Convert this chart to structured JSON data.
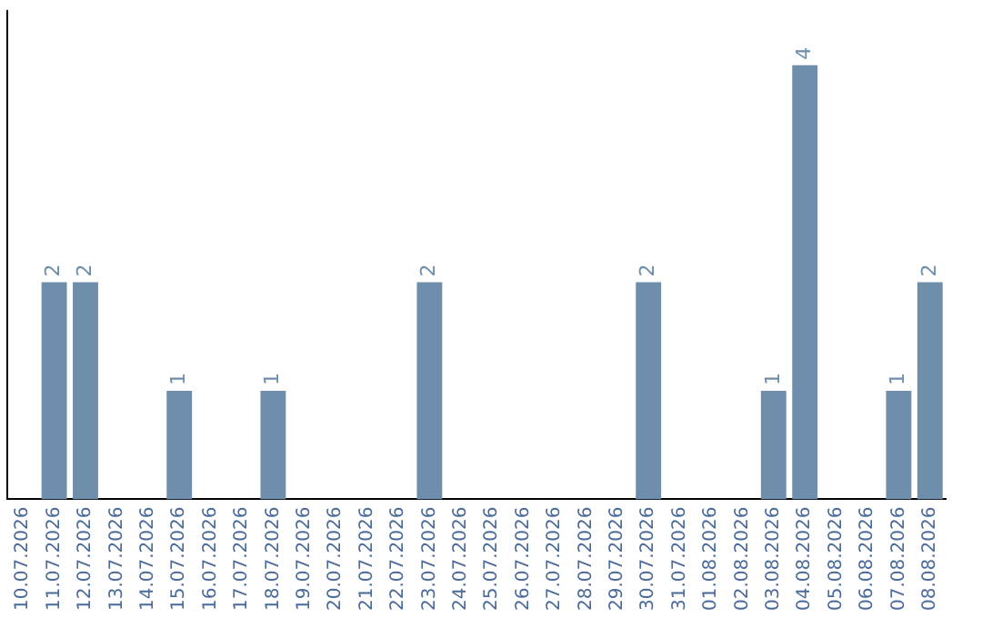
{
  "chart_data": {
    "type": "bar",
    "categories": [
      "10.07.2026",
      "11.07.2026",
      "12.07.2026",
      "13.07.2026",
      "14.07.2026",
      "15.07.2026",
      "16.07.2026",
      "17.07.2026",
      "18.07.2026",
      "19.07.2026",
      "20.07.2026",
      "21.07.2026",
      "22.07.2026",
      "23.07.2026",
      "24.07.2026",
      "25.07.2026",
      "26.07.2026",
      "27.07.2026",
      "28.07.2026",
      "29.07.2026",
      "30.07.2026",
      "31.07.2026",
      "01.08.2026",
      "02.08.2026",
      "03.08.2026",
      "04.08.2026",
      "05.08.2026",
      "06.08.2026",
      "07.08.2026",
      "08.08.2026"
    ],
    "values": [
      0,
      2,
      2,
      0,
      0,
      1,
      0,
      0,
      1,
      0,
      0,
      0,
      0,
      2,
      0,
      0,
      0,
      0,
      0,
      0,
      2,
      0,
      0,
      0,
      1,
      4,
      0,
      0,
      1,
      2
    ],
    "value_labels": [
      null,
      "2",
      "2",
      null,
      null,
      "1",
      null,
      null,
      "1",
      null,
      null,
      null,
      null,
      "2",
      null,
      null,
      null,
      null,
      null,
      null,
      "2",
      null,
      null,
      null,
      "1",
      "4",
      null,
      null,
      "1",
      "2"
    ],
    "color": "#6e8eab",
    "grid": false,
    "legend": false,
    "tick_labels": "x"
  }
}
